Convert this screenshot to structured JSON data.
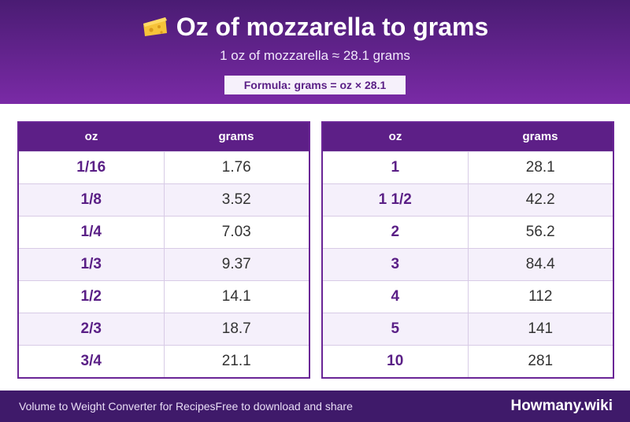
{
  "header": {
    "title": "Oz of mozzarella to grams",
    "icon": "cheese-icon",
    "subtitle": "1 oz of mozzarella ≈ 28.1 grams",
    "formula": "Formula: grams = oz × 28.1"
  },
  "colors": {
    "brand_purple": "#5d1f87",
    "header_gradient_top": "#4a1c73",
    "header_gradient_bottom": "#7a2aa6",
    "footer_bg": "#3f1a6a"
  },
  "tables": [
    {
      "headers": [
        "oz",
        "grams"
      ],
      "rows": [
        {
          "oz": "1/16",
          "grams": "1.76"
        },
        {
          "oz": "1/8",
          "grams": "3.52"
        },
        {
          "oz": "1/4",
          "grams": "7.03"
        },
        {
          "oz": "1/3",
          "grams": "9.37"
        },
        {
          "oz": "1/2",
          "grams": "14.1"
        },
        {
          "oz": "2/3",
          "grams": "18.7"
        },
        {
          "oz": "3/4",
          "grams": "21.1"
        }
      ]
    },
    {
      "headers": [
        "oz",
        "grams"
      ],
      "rows": [
        {
          "oz": "1",
          "grams": "28.1"
        },
        {
          "oz": "1 1/2",
          "grams": "42.2"
        },
        {
          "oz": "2",
          "grams": "56.2"
        },
        {
          "oz": "3",
          "grams": "84.4"
        },
        {
          "oz": "4",
          "grams": "112"
        },
        {
          "oz": "5",
          "grams": "141"
        },
        {
          "oz": "10",
          "grams": "281"
        }
      ]
    }
  ],
  "footer": {
    "text": "Volume to Weight Converter for RecipesFree to download and share",
    "brand": "Howmany.wiki"
  }
}
